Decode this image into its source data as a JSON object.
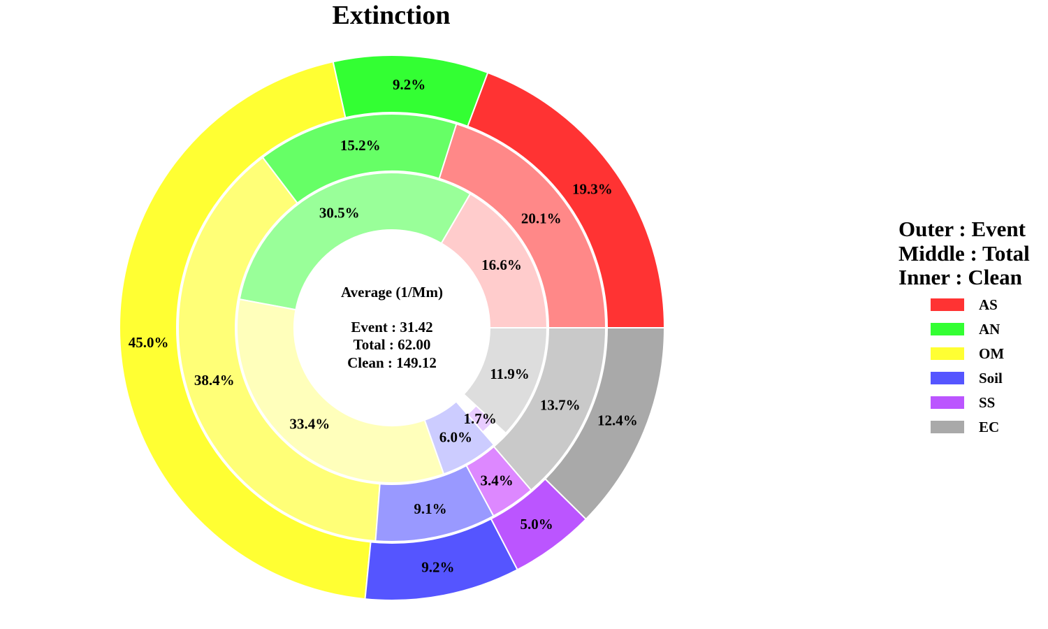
{
  "chart_data": {
    "type": "pie",
    "title": "Extinction",
    "categories": [
      "AS",
      "AN",
      "OM",
      "Soil",
      "SS",
      "EC"
    ],
    "series": [
      {
        "name": "Outer : Event",
        "values": [
          19.3,
          9.2,
          45.0,
          9.2,
          5.0,
          12.4
        ]
      },
      {
        "name": "Middle : Total",
        "values": [
          20.1,
          15.2,
          38.4,
          9.1,
          3.4,
          13.7
        ]
      },
      {
        "name": "Inner : Clean",
        "values": [
          16.6,
          30.5,
          33.4,
          6.0,
          1.7,
          11.9
        ]
      }
    ],
    "value_labels": {
      "outer": [
        "19.3%",
        "9.2%",
        "45.0%",
        "9.2%",
        "5.0%",
        "12.4%"
      ],
      "middle": [
        "20.1%",
        "15.2%",
        "38.4%",
        "9.1%",
        "3.4%",
        "13.7%"
      ],
      "inner": [
        "16.6%",
        "30.5%",
        "33.4%",
        "6.0%",
        "1.7%",
        "11.9%"
      ]
    },
    "center_text": {
      "heading": "Average (1/Mm)",
      "lines": [
        "Event : 31.42",
        "Total : 62.00",
        "Clean : 149.12"
      ]
    },
    "legend": {
      "header_lines": [
        "Outer : Event",
        "Middle : Total",
        "Inner : Clean"
      ],
      "entries": [
        "AS",
        "AN",
        "OM",
        "Soil",
        "SS",
        "EC"
      ],
      "placement": "right"
    },
    "colors": {
      "outer": [
        "#ff3333",
        "#33ff33",
        "#ffff33",
        "#5555ff",
        "#bb55ff",
        "#a9a9a9"
      ],
      "middle": [
        "#ff8888",
        "#66ff66",
        "#ffff77",
        "#9999ff",
        "#dd88ff",
        "#c9c9c9"
      ],
      "inner": [
        "#ffcccc",
        "#99ff99",
        "#ffffbb",
        "#ccccff",
        "#e8ccff",
        "#dddddd"
      ]
    }
  }
}
